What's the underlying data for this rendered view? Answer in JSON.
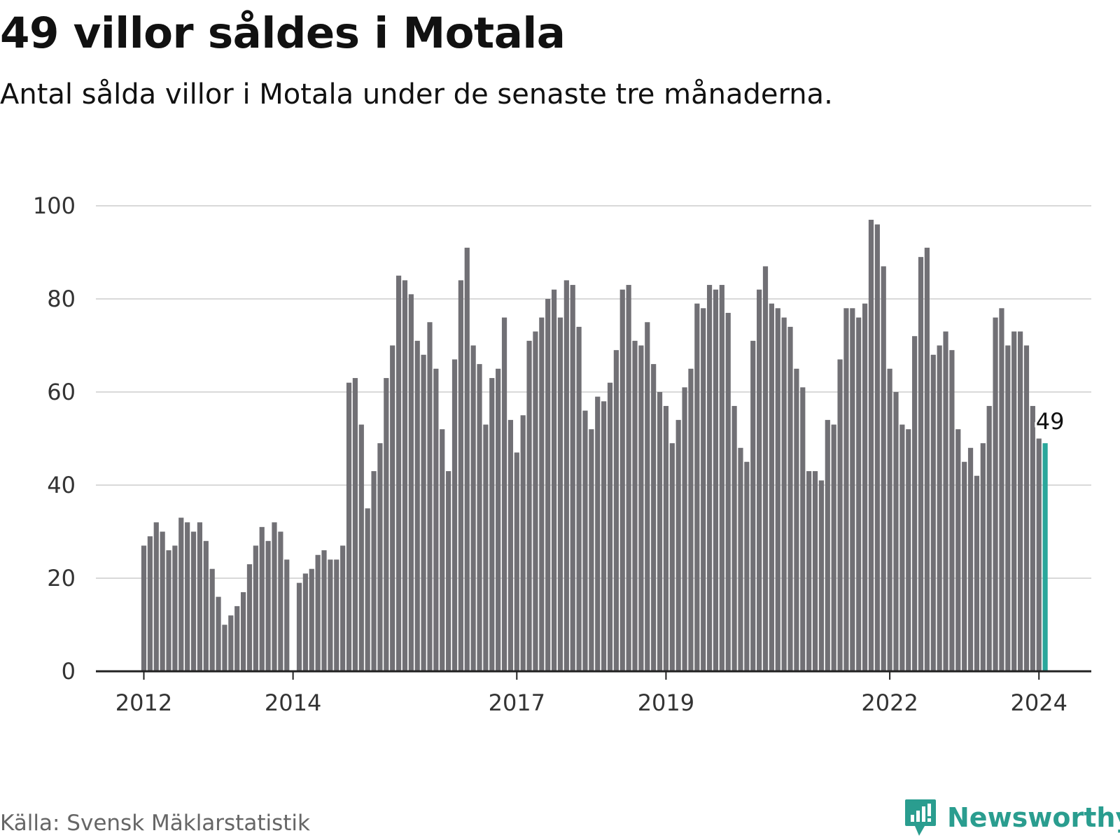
{
  "header": {
    "title": "49 villor såldes i Motala",
    "subtitle": "Antal sålda villor i Motala under de senaste tre månaderna."
  },
  "footer": {
    "source": "Källa: Svensk Mäklarstatistik",
    "brand": "Newsworthy"
  },
  "colors": {
    "bar": "#717075",
    "highlight": "#2aa79b",
    "grid": "#d9d9d9",
    "axis": "#222222",
    "brand": "#2a9d8f"
  },
  "chart_data": {
    "type": "bar",
    "title": "49 villor såldes i Motala",
    "subtitle": "Antal sålda villor i Motala under de senaste tre månaderna.",
    "xlabel": "",
    "ylabel": "",
    "ylim": [
      0,
      100
    ],
    "yticks": [
      0,
      20,
      40,
      60,
      80,
      100
    ],
    "grid": true,
    "x_start": "2012-01",
    "frequency": "monthly",
    "xtick_labels": [
      "2012",
      "2014",
      "2017",
      "2019",
      "2022",
      "2024"
    ],
    "xtick_indices": [
      0,
      24,
      60,
      84,
      120,
      144
    ],
    "highlight_index": 145,
    "annotation": "49",
    "values": [
      27,
      29,
      32,
      30,
      26,
      27,
      33,
      32,
      30,
      32,
      28,
      22,
      16,
      10,
      12,
      14,
      17,
      23,
      27,
      31,
      28,
      32,
      30,
      24,
      null,
      19,
      21,
      22,
      25,
      26,
      24,
      24,
      27,
      62,
      63,
      53,
      35,
      43,
      49,
      63,
      70,
      85,
      84,
      81,
      71,
      68,
      75,
      65,
      52,
      43,
      67,
      84,
      91,
      70,
      66,
      53,
      63,
      65,
      76,
      54,
      47,
      55,
      71,
      73,
      76,
      80,
      82,
      76,
      84,
      83,
      74,
      56,
      52,
      59,
      58,
      62,
      69,
      82,
      83,
      71,
      70,
      75,
      66,
      60,
      57,
      49,
      54,
      61,
      65,
      79,
      78,
      83,
      82,
      83,
      77,
      57,
      48,
      45,
      71,
      82,
      87,
      79,
      78,
      76,
      74,
      65,
      61,
      43,
      43,
      41,
      54,
      53,
      67,
      78,
      78,
      76,
      79,
      97,
      96,
      87,
      65,
      60,
      53,
      52,
      72,
      89,
      91,
      68,
      70,
      73,
      69,
      52,
      45,
      48,
      42,
      49,
      57,
      76,
      78,
      70,
      73,
      73,
      70,
      57,
      50,
      49
    ]
  }
}
